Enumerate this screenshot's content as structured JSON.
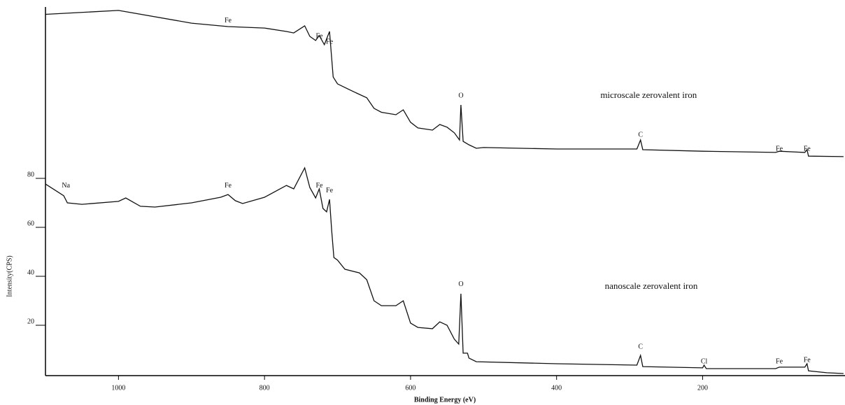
{
  "chart_data": {
    "type": "line",
    "x_label": "Binding Energy (eV)",
    "y_label": "Intensity(CPS)",
    "xlim": [
      1100,
      5
    ],
    "ylim": [
      0,
      150
    ],
    "xticks": [
      1000,
      800,
      600,
      400,
      200
    ],
    "yticks": [
      20,
      40,
      60,
      80
    ],
    "series": [
      {
        "name": "microscale zerovalent iron",
        "color": "#111111",
        "x": [
          1100,
          1000,
          900,
          850,
          800,
          770,
          760,
          745,
          738,
          730,
          725,
          718,
          711,
          706,
          700,
          680,
          660,
          650,
          640,
          620,
          610,
          600,
          590,
          570,
          560,
          550,
          540,
          533,
          531,
          528,
          520,
          510,
          500,
          400,
          290,
          285,
          282,
          200,
          100,
          95,
          60,
          57,
          55,
          7
        ],
        "values": [
          147,
          148.6,
          143.4,
          142,
          141.4,
          140,
          139.4,
          142.3,
          138,
          136.3,
          138.3,
          134.6,
          140,
          121.4,
          118.6,
          115.7,
          112.9,
          108.6,
          107,
          106,
          108,
          102.9,
          100.6,
          99.7,
          102,
          100.9,
          98.6,
          95.7,
          110,
          95.1,
          93.7,
          92.3,
          92.6,
          92,
          92,
          95.7,
          91.7,
          91.1,
          90.6,
          91.1,
          90.6,
          91.7,
          89.1,
          88.9
        ]
      },
      {
        "name": "nanoscale zerovalent iron",
        "color": "#111111",
        "x": [
          1100,
          1075,
          1070,
          1050,
          1000,
          990,
          970,
          950,
          900,
          860,
          850,
          840,
          830,
          800,
          770,
          760,
          745,
          738,
          730,
          725,
          720,
          715,
          711,
          708,
          705,
          700,
          690,
          670,
          660,
          650,
          640,
          620,
          610,
          600,
          590,
          570,
          560,
          550,
          540,
          534,
          531,
          528,
          522,
          520,
          510,
          400,
          290,
          285,
          282,
          200,
          198,
          195,
          100,
          95,
          60,
          57,
          55,
          30,
          7
        ],
        "values": [
          77.7,
          72.9,
          70,
          69.4,
          70.6,
          72,
          68.6,
          68.3,
          70,
          72.3,
          73.4,
          70.9,
          69.7,
          72.3,
          77.1,
          75.7,
          84.3,
          76.3,
          72,
          75.7,
          67.7,
          66.3,
          71.4,
          58.6,
          47.7,
          46.6,
          42.9,
          41.4,
          38.6,
          30,
          28,
          28,
          30,
          20.9,
          19.1,
          18.6,
          21.4,
          20,
          14.3,
          12.3,
          32.9,
          8.6,
          8.6,
          6.6,
          5.1,
          4.3,
          3.7,
          7.7,
          3.1,
          2.6,
          3.7,
          2.3,
          2.3,
          2.9,
          2.9,
          4.3,
          1.4,
          0.6,
          0.3
        ]
      }
    ],
    "annotations": [
      {
        "text": "Fe",
        "x": 850,
        "y": 144.3
      },
      {
        "text": "Fe",
        "x": 725,
        "y": 138
      },
      {
        "text": "Fe",
        "x": 711,
        "y": 135.7
      },
      {
        "text": "microscale zerovalent iron",
        "x": 340,
        "y": 113.7
      },
      {
        "text": "O",
        "x": 531,
        "y": 113.7
      },
      {
        "text": "C",
        "x": 285,
        "y": 97.7
      },
      {
        "text": "Fe",
        "x": 95,
        "y": 92
      },
      {
        "text": "Fe",
        "x": 57,
        "y": 92
      },
      {
        "text": "Na",
        "x": 1072,
        "y": 77
      },
      {
        "text": "Fe",
        "x": 850,
        "y": 77
      },
      {
        "text": "Fe",
        "x": 725,
        "y": 77
      },
      {
        "text": "Fe",
        "x": 711,
        "y": 75
      },
      {
        "text": "O",
        "x": 531,
        "y": 36.6
      },
      {
        "text": "nanoscale zerovalent iron",
        "x": 334,
        "y": 35.7
      },
      {
        "text": "C",
        "x": 285,
        "y": 11.1
      },
      {
        "text": "Cl",
        "x": 198,
        "y": 5.1
      },
      {
        "text": "Fe",
        "x": 95,
        "y": 5.1
      },
      {
        "text": "Fe",
        "x": 57,
        "y": 5.7
      }
    ]
  }
}
